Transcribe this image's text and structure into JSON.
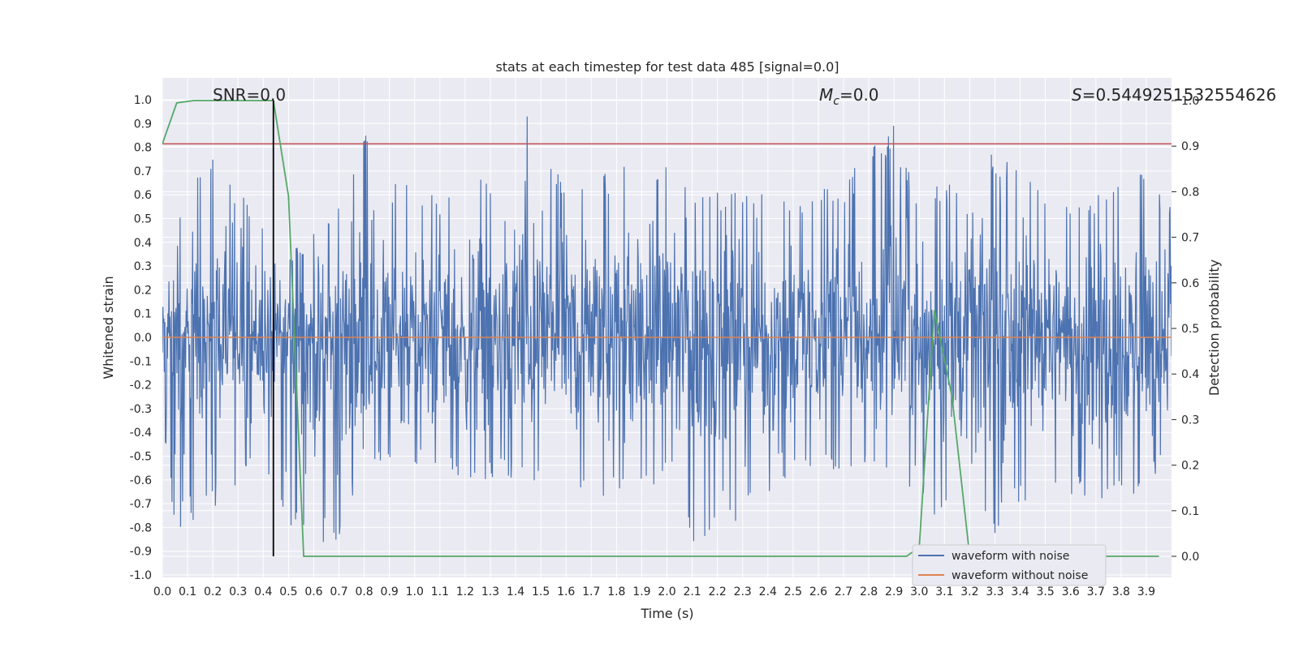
{
  "chart_data": {
    "type": "line",
    "title": "stats at each timestep for test data 485 [signal=0.0]",
    "xlabel": "Time (s)",
    "ylabel": "Whitened strain",
    "ylabel_right": "Detection probability",
    "xlim": [
      0.0,
      4.0
    ],
    "ylim": [
      -1.0,
      1.0
    ],
    "ylim_right": [
      0.0,
      1.0
    ],
    "x_ticks": [
      "0.0",
      "0.1",
      "0.2",
      "0.3",
      "0.4",
      "0.5",
      "0.6",
      "0.7",
      "0.8",
      "0.9",
      "1.0",
      "1.1",
      "1.2",
      "1.3",
      "1.4",
      "1.5",
      "1.6",
      "1.7",
      "1.8",
      "1.9",
      "2.0",
      "2.1",
      "2.2",
      "2.3",
      "2.4",
      "2.5",
      "2.6",
      "2.7",
      "2.8",
      "2.9",
      "3.0",
      "3.1",
      "3.2",
      "3.3",
      "3.4",
      "3.5",
      "3.6",
      "3.7",
      "3.8",
      "3.9"
    ],
    "y_ticks": [
      "-1.0",
      "-0.9",
      "-0.8",
      "-0.7",
      "-0.6",
      "-0.5",
      "-0.4",
      "-0.3",
      "-0.2",
      "-0.1",
      "0.0",
      "0.1",
      "0.2",
      "0.3",
      "0.4",
      "0.5",
      "0.6",
      "0.7",
      "0.8",
      "0.9",
      "1.0"
    ],
    "y_ticks_right": [
      "0.0",
      "0.1",
      "0.2",
      "0.3",
      "0.4",
      "0.5",
      "0.6",
      "0.7",
      "0.8",
      "0.9",
      "1.0"
    ],
    "grid": true,
    "legend_position": "lower-right",
    "annotations": {
      "snr": "SNR=0.0",
      "mc_symbol": "M",
      "mc_sub": "c",
      "mc_value": "=0.0",
      "s_symbol": "S",
      "s_value": "=0.5449251532554626"
    },
    "series": [
      {
        "name": "waveform with noise",
        "color": "#4c72b0",
        "axis": "left",
        "envelope": [
          [
            0.0,
            -0.35,
            0.45
          ],
          [
            0.05,
            -0.83,
            0.55
          ],
          [
            0.2,
            -0.72,
            0.76
          ],
          [
            0.4,
            -0.55,
            0.5
          ],
          [
            0.5,
            -0.81,
            0.35
          ],
          [
            0.7,
            -0.92,
            0.55
          ],
          [
            0.83,
            -0.55,
            0.95
          ],
          [
            1.0,
            -0.55,
            0.6
          ],
          [
            1.2,
            -0.6,
            0.6
          ],
          [
            1.42,
            -0.6,
            1.0
          ],
          [
            1.6,
            -0.65,
            0.65
          ],
          [
            1.8,
            -0.68,
            0.72
          ],
          [
            2.0,
            -0.6,
            0.75
          ],
          [
            2.13,
            -0.92,
            0.6
          ],
          [
            2.3,
            -0.78,
            0.65
          ],
          [
            2.5,
            -0.6,
            0.6
          ],
          [
            2.7,
            -0.55,
            0.66
          ],
          [
            2.9,
            -0.55,
            0.9
          ],
          [
            3.0,
            -0.72,
            0.6
          ],
          [
            3.1,
            -0.78,
            0.65
          ],
          [
            3.3,
            -0.84,
            0.79
          ],
          [
            3.5,
            -0.6,
            0.6
          ],
          [
            3.7,
            -0.72,
            0.6
          ],
          [
            3.9,
            -0.65,
            0.72
          ],
          [
            4.0,
            -0.45,
            0.55
          ]
        ]
      },
      {
        "name": "waveform without noise",
        "color": "#dd8452",
        "axis": "left",
        "points": [
          [
            0.0,
            0.0
          ],
          [
            4.0,
            0.0
          ]
        ]
      },
      {
        "color": "#55a868",
        "axis": "right",
        "points": [
          [
            0.0,
            0.905
          ],
          [
            0.057,
            0.995
          ],
          [
            0.125,
            1.0
          ],
          [
            0.44,
            1.0
          ],
          [
            0.5,
            0.79
          ],
          [
            0.56,
            0.0
          ],
          [
            2.95,
            0.0
          ],
          [
            3.0,
            0.02
          ],
          [
            3.06,
            0.54
          ],
          [
            3.13,
            0.35
          ],
          [
            3.2,
            0.0
          ],
          [
            3.95,
            0.0
          ]
        ]
      }
    ],
    "threshold_line": {
      "y_right": 0.905,
      "color": "#c44e52"
    },
    "marker_line": {
      "x": 0.44,
      "color": "#000000"
    }
  }
}
